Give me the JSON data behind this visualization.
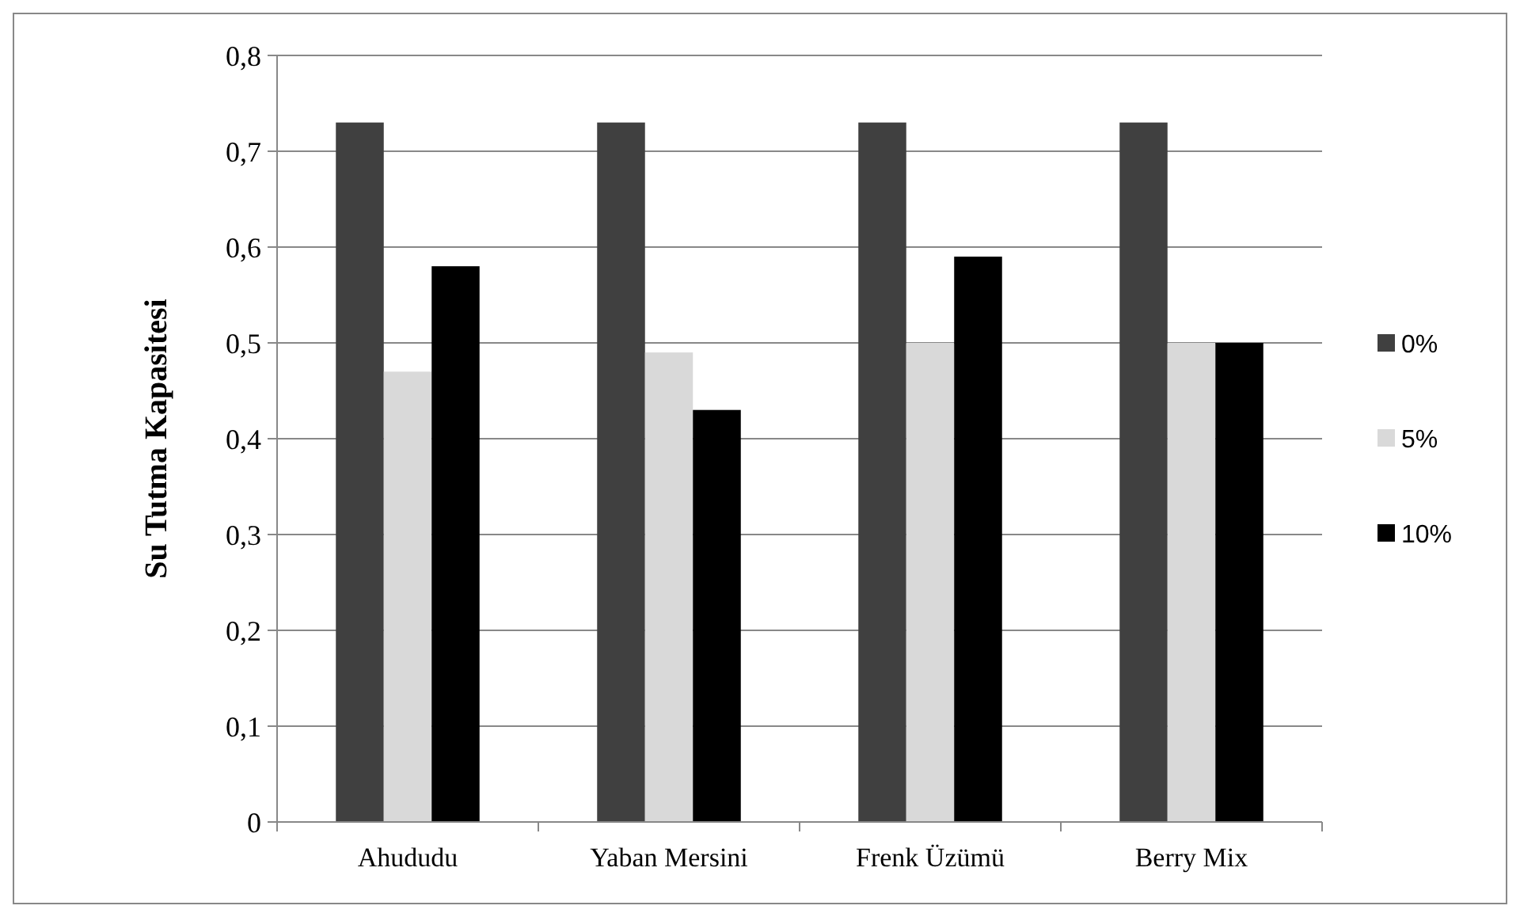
{
  "chart_data": {
    "type": "bar",
    "ylabel": "Su Tutma Kapasitesi",
    "categories": [
      "Ahududu",
      "Yaban Mersini",
      "Frenk Üzümü",
      "Berry Mix"
    ],
    "series": [
      {
        "name": "0%",
        "color": "#404040",
        "values": [
          0.73,
          0.73,
          0.73,
          0.73
        ]
      },
      {
        "name": "5%",
        "color": "#d9d9d9",
        "values": [
          0.47,
          0.49,
          0.5,
          0.5
        ]
      },
      {
        "name": "10%",
        "color": "#000000",
        "values": [
          0.58,
          0.43,
          0.59,
          0.5
        ]
      }
    ],
    "ylim": [
      0,
      0.8
    ],
    "yticks": [
      {
        "value": 0,
        "label": "0"
      },
      {
        "value": 0.1,
        "label": "0,1"
      },
      {
        "value": 0.2,
        "label": "0,2"
      },
      {
        "value": 0.3,
        "label": "0,3"
      },
      {
        "value": 0.4,
        "label": "0,4"
      },
      {
        "value": 0.5,
        "label": "0,5"
      },
      {
        "value": 0.6,
        "label": "0,6"
      },
      {
        "value": 0.7,
        "label": "0,7"
      },
      {
        "value": 0.8,
        "label": "0,8"
      }
    ],
    "grid": "y",
    "legend": "right"
  }
}
